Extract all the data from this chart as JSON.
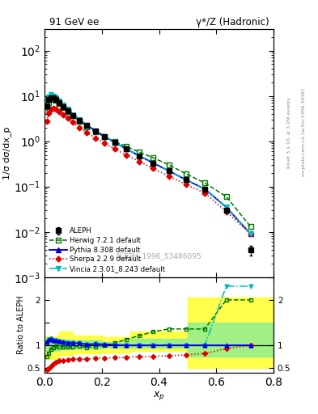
{
  "title_left": "91 GeV ee",
  "title_right": "γ*/Z (Hadronic)",
  "ylabel_main": "1/σ dσ/dx_p",
  "ylabel_ratio": "Ratio to ALEPH",
  "xlabel": "x_p",
  "watermark": "ALEPH_1996_S3486095",
  "right_label1": "Rivet 3.1.10, ≥ 3.2M events",
  "right_label2": "mcplots.cern.ch [arXiv:1306.3436]",
  "aleph_x": [
    0.008,
    0.015,
    0.022,
    0.03,
    0.04,
    0.052,
    0.066,
    0.082,
    0.1,
    0.122,
    0.148,
    0.178,
    0.21,
    0.245,
    0.285,
    0.33,
    0.38,
    0.435,
    0.495,
    0.56,
    0.635,
    0.72
  ],
  "aleph_y": [
    6.0,
    8.5,
    9.2,
    9.0,
    8.2,
    7.0,
    5.8,
    4.7,
    3.7,
    2.85,
    2.2,
    1.65,
    1.25,
    0.93,
    0.68,
    0.48,
    0.33,
    0.22,
    0.14,
    0.088,
    0.03,
    0.004
  ],
  "aleph_yerr": [
    0.4,
    0.3,
    0.3,
    0.25,
    0.2,
    0.18,
    0.15,
    0.12,
    0.1,
    0.08,
    0.06,
    0.05,
    0.04,
    0.03,
    0.025,
    0.018,
    0.013,
    0.009,
    0.006,
    0.004,
    0.002,
    0.001
  ],
  "herwig_x": [
    0.008,
    0.015,
    0.022,
    0.03,
    0.04,
    0.052,
    0.066,
    0.082,
    0.1,
    0.122,
    0.148,
    0.178,
    0.21,
    0.245,
    0.285,
    0.33,
    0.38,
    0.435,
    0.495,
    0.56,
    0.635,
    0.72
  ],
  "herwig_y": [
    4.5,
    7.0,
    8.5,
    8.5,
    8.0,
    6.8,
    5.6,
    4.5,
    3.6,
    2.8,
    2.1,
    1.6,
    1.25,
    0.98,
    0.77,
    0.58,
    0.43,
    0.3,
    0.19,
    0.12,
    0.06,
    0.013
  ],
  "pythia_x": [
    0.008,
    0.015,
    0.022,
    0.03,
    0.04,
    0.052,
    0.066,
    0.082,
    0.1,
    0.122,
    0.148,
    0.178,
    0.21,
    0.245,
    0.285,
    0.33,
    0.38,
    0.435,
    0.495,
    0.56,
    0.635,
    0.72
  ],
  "pythia_y": [
    6.5,
    9.5,
    10.5,
    10.0,
    9.0,
    7.6,
    6.2,
    5.0,
    3.9,
    3.0,
    2.25,
    1.7,
    1.28,
    0.94,
    0.68,
    0.48,
    0.33,
    0.22,
    0.14,
    0.088,
    0.035,
    0.009
  ],
  "sherpa_x": [
    0.008,
    0.015,
    0.022,
    0.03,
    0.04,
    0.052,
    0.066,
    0.082,
    0.1,
    0.122,
    0.148,
    0.178,
    0.21,
    0.245,
    0.285,
    0.33,
    0.38,
    0.435,
    0.495,
    0.56,
    0.635,
    0.72
  ],
  "sherpa_y": [
    2.8,
    4.2,
    5.0,
    5.3,
    5.2,
    4.6,
    3.9,
    3.2,
    2.6,
    2.0,
    1.55,
    1.18,
    0.9,
    0.68,
    0.5,
    0.36,
    0.25,
    0.17,
    0.11,
    0.072,
    0.028,
    0.009
  ],
  "vincia_x": [
    0.008,
    0.015,
    0.022,
    0.03,
    0.04,
    0.052,
    0.066,
    0.082,
    0.1,
    0.122,
    0.148,
    0.178,
    0.21,
    0.245,
    0.285,
    0.33,
    0.38,
    0.435,
    0.495,
    0.56,
    0.635,
    0.72
  ],
  "vincia_y": [
    6.5,
    9.5,
    10.5,
    10.0,
    9.0,
    7.6,
    6.2,
    5.0,
    3.9,
    3.0,
    2.25,
    1.7,
    1.28,
    0.94,
    0.68,
    0.48,
    0.33,
    0.22,
    0.14,
    0.088,
    0.035,
    0.009
  ],
  "herwig_ratio": [
    0.75,
    0.82,
    0.92,
    0.94,
    0.98,
    0.97,
    0.97,
    0.96,
    0.97,
    0.98,
    0.95,
    0.97,
    1.0,
    1.05,
    1.13,
    1.21,
    1.3,
    1.36,
    1.36,
    1.36,
    2.0,
    2.0
  ],
  "pythia_ratio": [
    1.08,
    1.12,
    1.14,
    1.11,
    1.1,
    1.09,
    1.07,
    1.06,
    1.05,
    1.05,
    1.02,
    1.03,
    1.02,
    1.01,
    1.0,
    1.0,
    1.0,
    1.0,
    1.0,
    1.0,
    1.0,
    1.0
  ],
  "sherpa_ratio": [
    0.47,
    0.49,
    0.54,
    0.59,
    0.63,
    0.66,
    0.67,
    0.68,
    0.7,
    0.7,
    0.7,
    0.72,
    0.72,
    0.73,
    0.74,
    0.75,
    0.76,
    0.77,
    0.79,
    0.82,
    0.93,
    1.0
  ],
  "vincia_ratio": [
    1.08,
    1.12,
    1.14,
    1.11,
    1.1,
    1.09,
    1.07,
    1.06,
    1.05,
    1.05,
    1.02,
    1.03,
    1.02,
    1.01,
    1.0,
    1.0,
    1.0,
    1.0,
    1.0,
    1.0,
    2.3,
    2.3
  ],
  "band_yellow_edges": [
    0.0,
    0.05,
    0.1,
    0.2,
    0.3,
    0.5,
    0.6,
    0.8
  ],
  "band_yellow_low": [
    0.7,
    0.78,
    0.82,
    0.85,
    0.87,
    0.5,
    0.5,
    0.5
  ],
  "band_yellow_high": [
    1.2,
    1.3,
    1.22,
    1.18,
    1.3,
    2.05,
    2.05,
    2.05
  ],
  "band_green_edges": [
    0.0,
    0.05,
    0.1,
    0.2,
    0.3,
    0.5,
    0.6,
    0.8
  ],
  "band_green_low": [
    0.88,
    0.92,
    0.93,
    0.95,
    0.95,
    0.75,
    0.75,
    0.75
  ],
  "band_green_high": [
    1.12,
    1.12,
    1.1,
    1.08,
    1.15,
    1.5,
    1.5,
    1.5
  ],
  "colors": {
    "aleph": "#000000",
    "herwig": "#007700",
    "pythia": "#0000dd",
    "sherpa": "#dd0000",
    "vincia": "#00bbbb"
  },
  "xlim": [
    0.0,
    0.8
  ],
  "ylim_main": [
    0.001,
    300
  ],
  "ylim_ratio": [
    0.4,
    2.5
  ],
  "figsize": [
    3.93,
    5.12
  ],
  "dpi": 100
}
